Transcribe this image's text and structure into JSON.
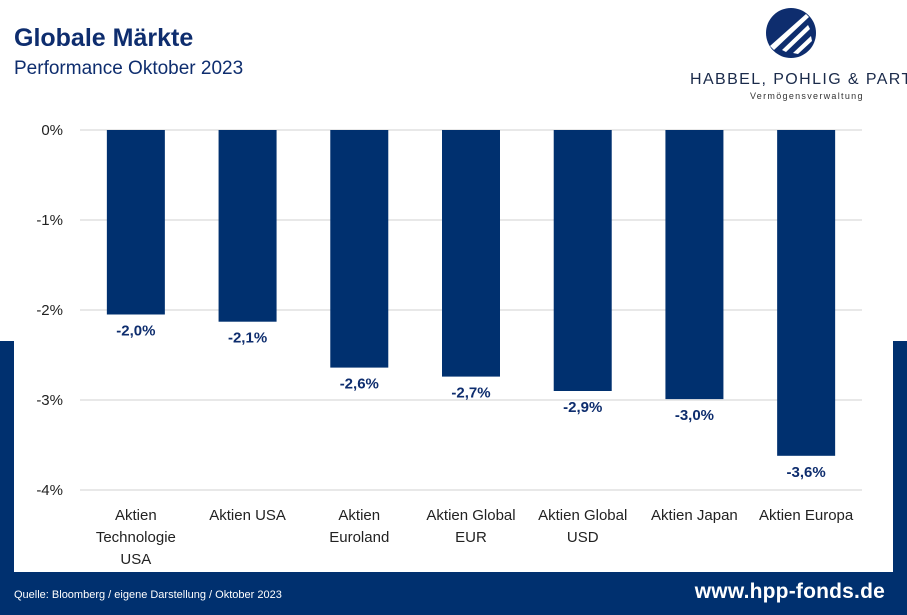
{
  "header": {
    "title": "Globale Märkte",
    "subtitle": "Performance Oktober 2023"
  },
  "logo": {
    "name": "HABBEL, POHLIG & PARTNER",
    "tagline": "Vermögensverwaltung",
    "icon": "hpp-logo-icon"
  },
  "footer": {
    "source": "Quelle: Bloomberg / eigene Darstellung / Oktober 2023",
    "url": "www.hpp-fonds.de"
  },
  "colors": {
    "navy": "#00306f",
    "bar": "#00306f",
    "label": "#0e2d6e",
    "grid": "#d0d0d0"
  },
  "chart_data": {
    "type": "bar",
    "categories": [
      [
        "Aktien",
        "Technologie",
        "USA"
      ],
      [
        "Aktien USA"
      ],
      [
        "Aktien",
        "Euroland"
      ],
      [
        "Aktien Global",
        "EUR"
      ],
      [
        "Aktien Global",
        "USD"
      ],
      [
        "Aktien Japan"
      ],
      [
        "Aktien Europa"
      ]
    ],
    "values": [
      -2.05,
      -2.13,
      -2.64,
      -2.74,
      -2.9,
      -2.99,
      -3.62
    ],
    "data_labels": [
      "-2,0%",
      "-2,1%",
      "-2,6%",
      "-2,7%",
      "-2,9%",
      "-3,0%",
      "-3,6%"
    ],
    "yticks": [
      0,
      -1,
      -2,
      -3,
      -4
    ],
    "ytick_labels": [
      "0%",
      "-1%",
      "-2%",
      "-3%",
      "-4%"
    ],
    "ylim": [
      -4,
      0
    ],
    "grid": true,
    "legend": "none"
  }
}
